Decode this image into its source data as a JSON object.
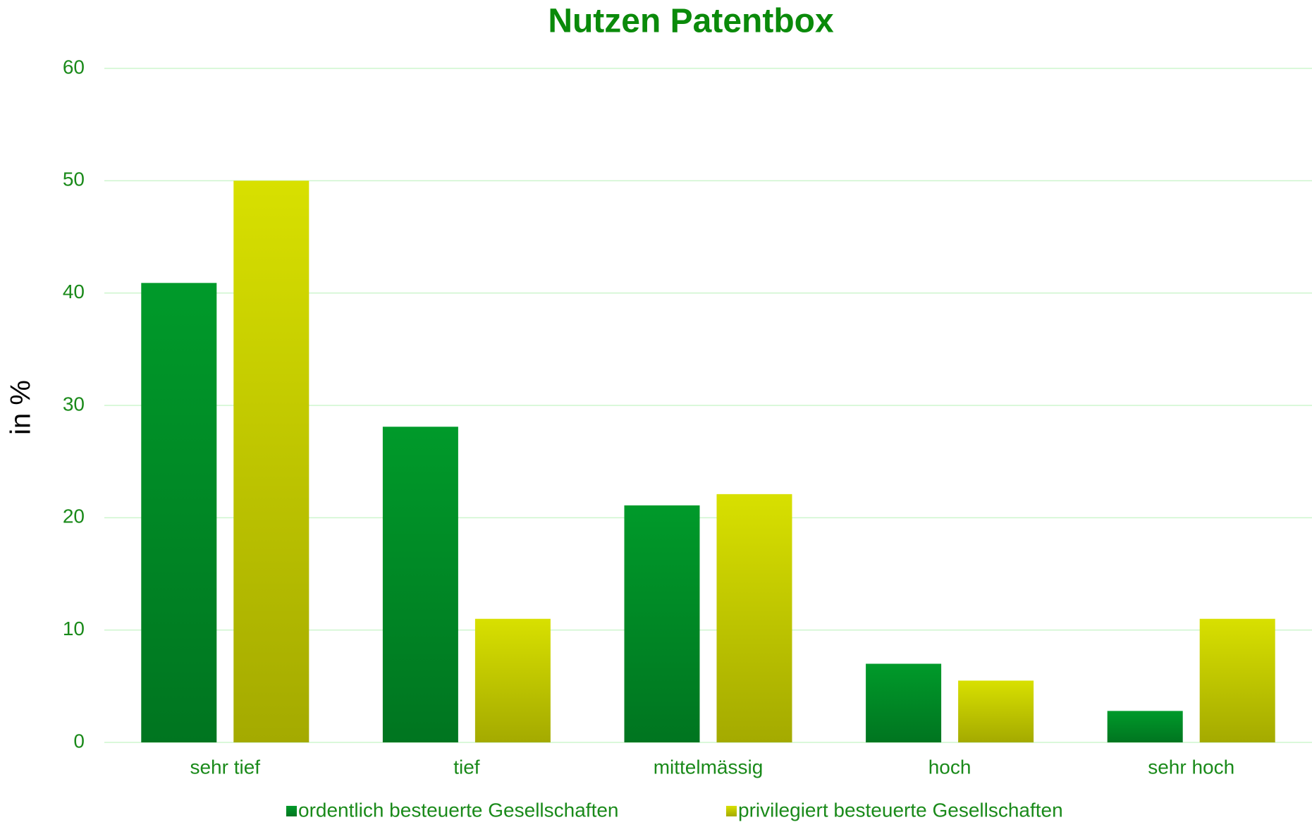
{
  "chart_data": {
    "type": "bar",
    "title": "Nutzen Patentbox",
    "y_label": "in %",
    "categories": [
      "sehr tief",
      "tief",
      "mittelmässig",
      "hoch",
      "sehr hoch"
    ],
    "series": [
      {
        "name": "ordentlich besteuerte Gesellschaften",
        "color": "#009a2a",
        "values": [
          40.9,
          28.1,
          21.1,
          7.0,
          2.8
        ]
      },
      {
        "name": "privilegiert besteuerte Gesellschaften",
        "color": "#d8e000",
        "values": [
          50,
          11.0,
          22.1,
          5.5,
          11.0
        ]
      }
    ],
    "ylim": [
      0,
      60
    ],
    "yticks": [
      0,
      10,
      20,
      30,
      40,
      50,
      60
    ],
    "grid": true,
    "legend": "bottom"
  }
}
